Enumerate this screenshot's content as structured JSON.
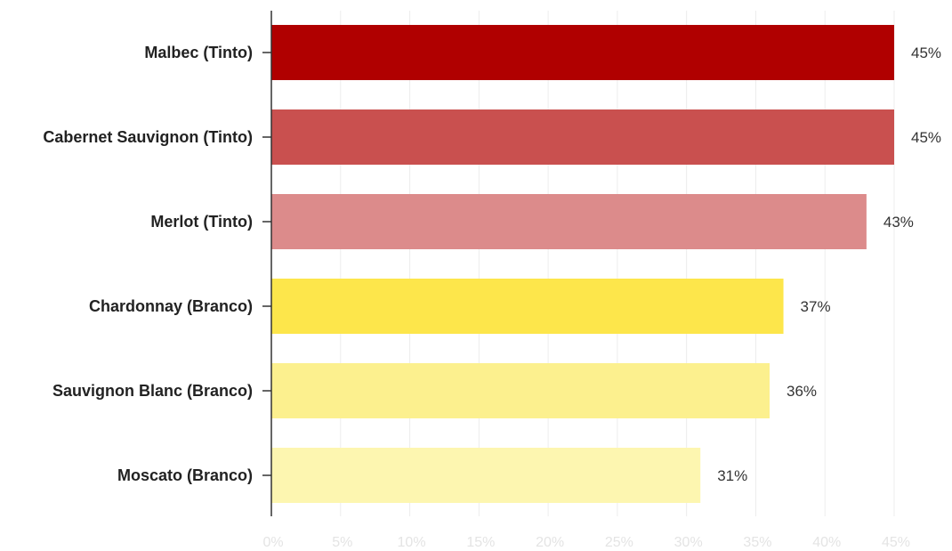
{
  "chart_data": {
    "type": "bar",
    "orientation": "horizontal",
    "categories": [
      "Malbec (Tinto)",
      "Cabernet Sauvignon (Tinto)",
      "Merlot (Tinto)",
      "Chardonnay (Branco)",
      "Sauvignon Blanc (Branco)",
      "Moscato (Branco)"
    ],
    "values": [
      45,
      45,
      43,
      37,
      36,
      31
    ],
    "data_labels": [
      "45%",
      "45%",
      "43%",
      "37%",
      "36%",
      "31%"
    ],
    "colors": [
      "#b00000",
      "#c9504f",
      "#dc8b8b",
      "#fde64b",
      "#fcf08e",
      "#fdf6b0"
    ],
    "xlim": [
      0,
      45
    ],
    "x_ticks": [
      0,
      5,
      10,
      15,
      20,
      25,
      30,
      35,
      40,
      45
    ],
    "x_tick_labels": [
      "0%",
      "5%",
      "10%",
      "15%",
      "20%",
      "25%",
      "30%",
      "35%",
      "40%",
      "45%"
    ],
    "grid": true,
    "legend": "none",
    "title": "",
    "xlabel": "",
    "ylabel": ""
  }
}
